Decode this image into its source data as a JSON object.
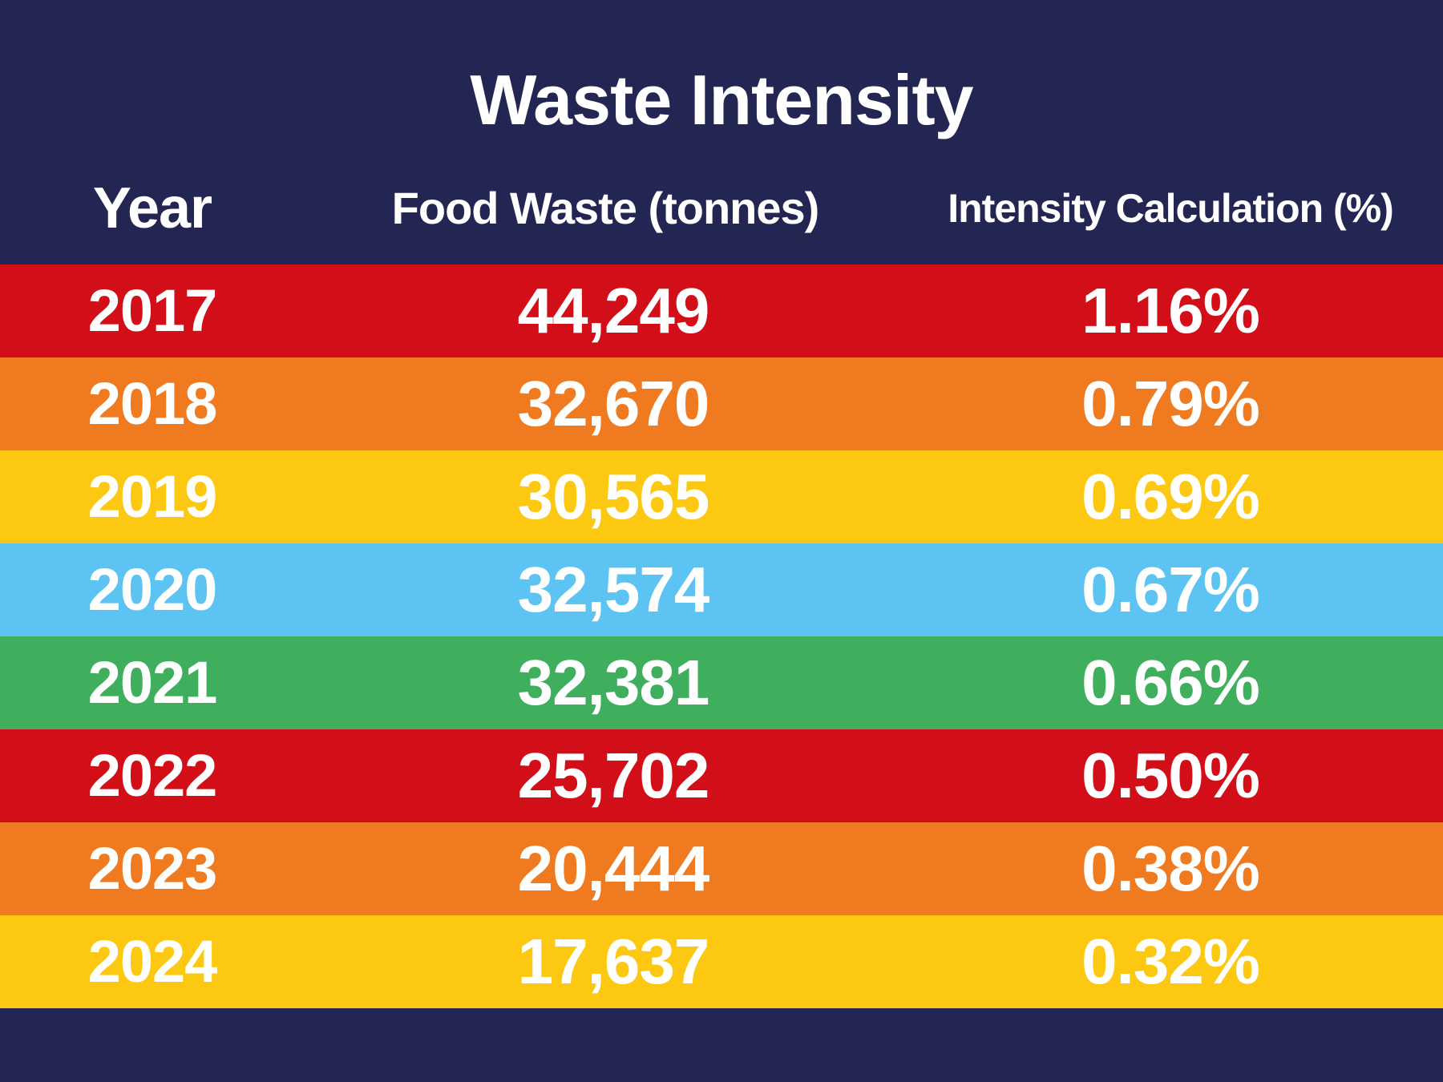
{
  "title": "Waste Intensity",
  "headers": {
    "year": "Year",
    "food_waste": "Food Waste (tonnes)",
    "intensity": "Intensity Calculation (%)"
  },
  "colors": {
    "background": "#232553",
    "red": "#d20f18",
    "orange": "#f07a1f",
    "yellow": "#fdc812",
    "light_blue": "#5cc3f2",
    "green": "#3faf5e"
  },
  "rows": [
    {
      "year": "2017",
      "food_waste": "44,249",
      "intensity": "1.16%",
      "color": "#d20f18"
    },
    {
      "year": "2018",
      "food_waste": "32,670",
      "intensity": "0.79%",
      "color": "#f07a1f"
    },
    {
      "year": "2019",
      "food_waste": "30,565",
      "intensity": "0.69%",
      "color": "#fdc812"
    },
    {
      "year": "2020",
      "food_waste": "32,574",
      "intensity": "0.67%",
      "color": "#5cc3f2"
    },
    {
      "year": "2021",
      "food_waste": "32,381",
      "intensity": "0.66%",
      "color": "#3faf5e"
    },
    {
      "year": "2022",
      "food_waste": "25,702",
      "intensity": "0.50%",
      "color": "#d20f18"
    },
    {
      "year": "2023",
      "food_waste": "20,444",
      "intensity": "0.38%",
      "color": "#f07a1f"
    },
    {
      "year": "2024",
      "food_waste": "17,637",
      "intensity": "0.32%",
      "color": "#fdc812"
    }
  ],
  "chart_data": {
    "type": "table",
    "title": "Waste Intensity",
    "columns": [
      "Year",
      "Food Waste (tonnes)",
      "Intensity Calculation (%)"
    ],
    "rows": [
      [
        "2017",
        44249,
        1.16
      ],
      [
        "2018",
        32670,
        0.79
      ],
      [
        "2019",
        30565,
        0.69
      ],
      [
        "2020",
        32574,
        0.67
      ],
      [
        "2021",
        32381,
        0.66
      ],
      [
        "2022",
        25702,
        0.5
      ],
      [
        "2023",
        20444,
        0.38
      ],
      [
        "2024",
        17637,
        0.32
      ]
    ]
  }
}
